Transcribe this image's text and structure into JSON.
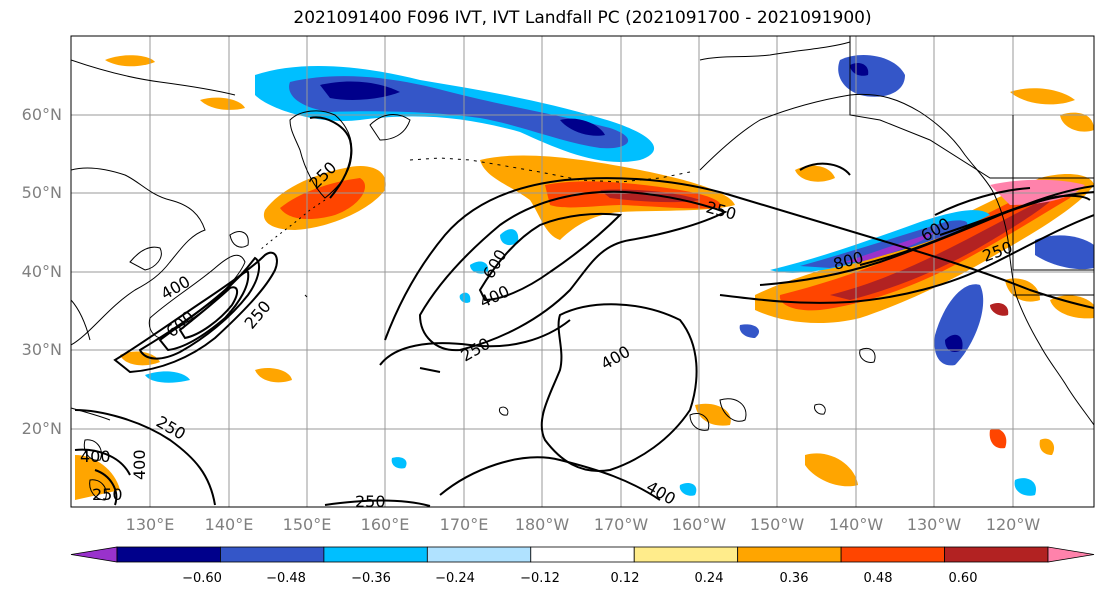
{
  "title": "2021091400 F096 IVT, IVT Landfall PC (2021091700 - 2021091900)",
  "axes": {
    "lat_labels": [
      "60°N",
      "50°N",
      "40°N",
      "30°N",
      "20°N"
    ],
    "lon_labels": [
      "130°E",
      "140°E",
      "150°E",
      "160°E",
      "170°E",
      "180°W",
      "170°W",
      "160°W",
      "150°W",
      "140°W",
      "130°W",
      "120°W"
    ],
    "lon_range": [
      120,
      251
    ],
    "lat_range": [
      10,
      70
    ]
  },
  "contours": {
    "labels": [
      "250",
      "250",
      "400",
      "600",
      "250",
      "400",
      "400",
      "600",
      "250",
      "400",
      "250",
      "400",
      "600",
      "800",
      "250",
      "250",
      "400",
      "250"
    ]
  },
  "colorbar": {
    "ticks": [
      "−0.60",
      "−0.48",
      "−0.36",
      "−0.24",
      "−0.12",
      "0.12",
      "0.24",
      "0.36",
      "0.48",
      "0.60"
    ],
    "colors": [
      "#9932cc",
      "#00008b",
      "#3456c8",
      "#00bfff",
      "#b0e2ff",
      "#ffffff",
      "#ffec8b",
      "#ffa500",
      "#ff4500",
      "#b22222",
      "#ff82ab"
    ]
  },
  "chart_data": {
    "type": "heatmap",
    "title": "2021091400 F096 IVT, IVT Landfall PC (2021091700 - 2021091900)",
    "xlabel": "",
    "ylabel": "",
    "x_range": [
      120,
      251
    ],
    "y_range": [
      10,
      70
    ],
    "contour_levels": [
      250,
      400,
      600,
      800
    ],
    "color_levels": [
      -0.6,
      -0.48,
      -0.36,
      -0.24,
      -0.12,
      0.12,
      0.24,
      0.36,
      0.48,
      0.6
    ],
    "grid": true,
    "legend": "bottom"
  }
}
